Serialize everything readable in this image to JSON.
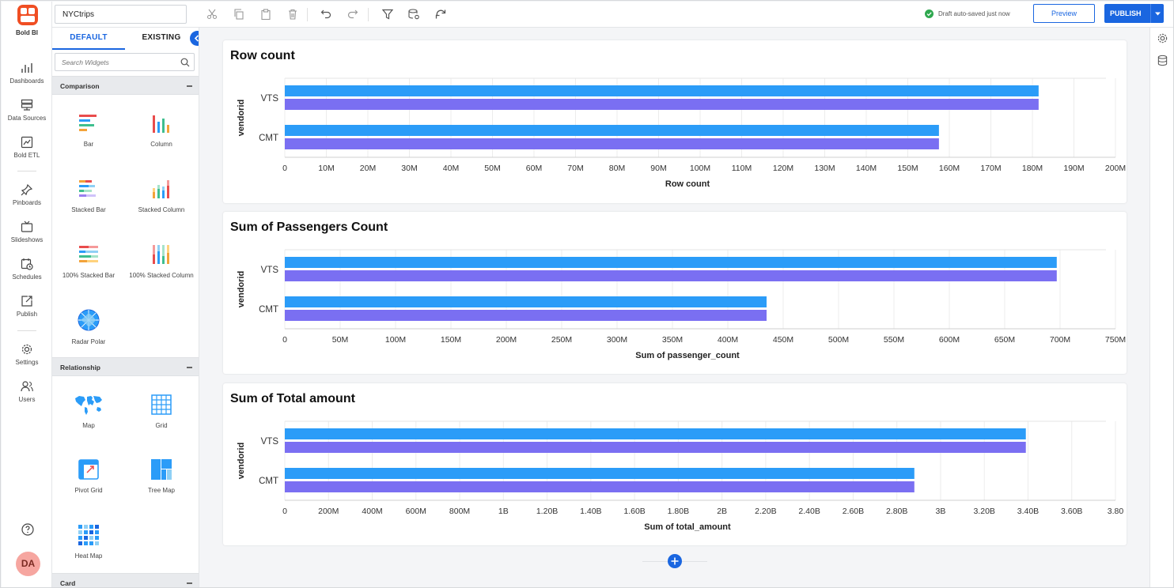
{
  "nav": {
    "logo_text": "Bold BI",
    "items": [
      {
        "label": "Dashboards",
        "icon": "dashboards-icon"
      },
      {
        "label": "Data Sources",
        "icon": "data-sources-icon"
      },
      {
        "label": "Bold ETL",
        "icon": "bold-etl-icon"
      },
      {
        "label": "Pinboards",
        "icon": "pin-icon"
      },
      {
        "label": "Slideshows",
        "icon": "slideshow-icon"
      },
      {
        "label": "Schedules",
        "icon": "schedule-icon"
      },
      {
        "label": "Publish",
        "icon": "publish-icon"
      },
      {
        "label": "Settings",
        "icon": "gear-icon"
      },
      {
        "label": "Users",
        "icon": "users-icon"
      }
    ],
    "avatar": "DA"
  },
  "toolbar": {
    "dashboard_name": "NYCtrips",
    "saved_status": "Draft auto-saved just now",
    "preview_label": "Preview",
    "publish_label": "PUBLISH"
  },
  "panel": {
    "tabs": [
      "DEFAULT",
      "EXISTING"
    ],
    "search_placeholder": "Search Widgets",
    "categories": [
      {
        "name": "Comparison",
        "widgets": [
          "Bar",
          "Column",
          "Stacked Bar",
          "Stacked Column",
          "100% Stacked Bar",
          "100% Stacked Column",
          "Radar Polar"
        ]
      },
      {
        "name": "Relationship",
        "widgets": [
          "Map",
          "Grid",
          "Pivot Grid",
          "Tree Map",
          "Heat Map"
        ]
      },
      {
        "name": "Card",
        "widgets": []
      }
    ]
  },
  "colors": {
    "accent": "#1a66e0",
    "bar_blue": "#2b9cf8",
    "bar_purple": "#7a6ff2"
  },
  "chart_data": [
    {
      "type": "bar",
      "orientation": "horizontal",
      "title": "Row count",
      "xlabel": "Row count",
      "ylabel": "vendorid",
      "categories": [
        "VTS",
        "CMT"
      ],
      "series": [
        {
          "values": [
            181500000,
            157500000
          ]
        },
        {
          "values": [
            181500000,
            157500000
          ]
        }
      ],
      "xlim": [
        0,
        200000000
      ],
      "ticks": [
        "0",
        "10M",
        "20M",
        "30M",
        "40M",
        "50M",
        "60M",
        "70M",
        "80M",
        "90M",
        "100M",
        "110M",
        "120M",
        "130M",
        "140M",
        "150M",
        "160M",
        "170M",
        "180M",
        "190M",
        "200M"
      ]
    },
    {
      "type": "bar",
      "orientation": "horizontal",
      "title": "Sum of Passengers Count",
      "xlabel": "Sum of passenger_count",
      "ylabel": "vendorid",
      "categories": [
        "VTS",
        "CMT"
      ],
      "series": [
        {
          "values": [
            697000000,
            435000000
          ]
        },
        {
          "values": [
            697000000,
            435000000
          ]
        }
      ],
      "xlim": [
        0,
        750000000
      ],
      "ticks": [
        "0",
        "50M",
        "100M",
        "150M",
        "200M",
        "250M",
        "300M",
        "350M",
        "400M",
        "450M",
        "500M",
        "550M",
        "600M",
        "650M",
        "700M",
        "750M"
      ]
    },
    {
      "type": "bar",
      "orientation": "horizontal",
      "title": "Sum of Total amount",
      "xlabel": "Sum of total_amount",
      "ylabel": "vendorid",
      "categories": [
        "VTS",
        "CMT"
      ],
      "series": [
        {
          "values": [
            3390000000,
            2880000000
          ]
        },
        {
          "values": [
            3390000000,
            2880000000
          ]
        }
      ],
      "xlim": [
        0,
        3800000000
      ],
      "ticks": [
        "0",
        "200M",
        "400M",
        "600M",
        "800M",
        "1B",
        "1.20B",
        "1.40B",
        "1.60B",
        "1.80B",
        "2B",
        "2.20B",
        "2.40B",
        "2.60B",
        "2.80B",
        "3B",
        "3.20B",
        "3.40B",
        "3.60B",
        "3.80"
      ]
    }
  ]
}
